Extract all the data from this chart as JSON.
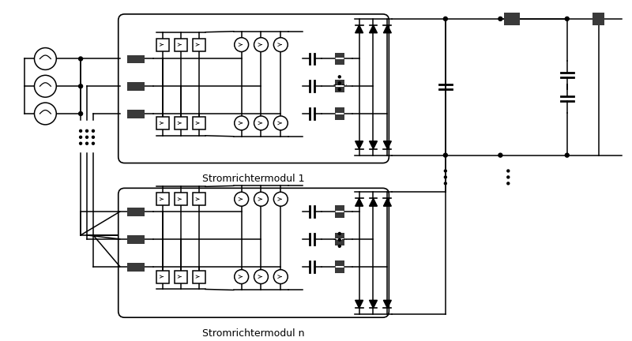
{
  "bg": "#ffffff",
  "lc": "#000000",
  "dark": "#3a3a3a",
  "label1": "Stromrichtermodul 1",
  "label2": "Stromrichtermodul n",
  "lw": 1.1,
  "lw_heavy": 1.4
}
